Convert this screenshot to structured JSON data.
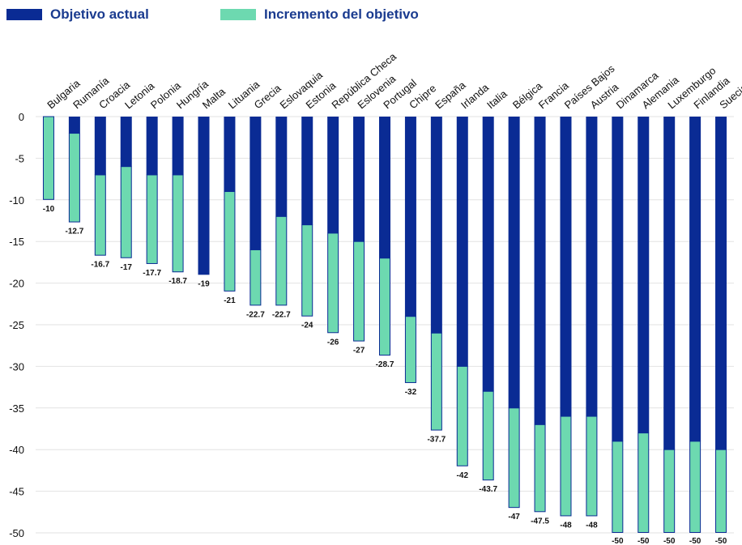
{
  "colors": {
    "current": "#0a2b94",
    "increase": "#6dd9b0",
    "legend_text": "#1a3b8f",
    "grid": "#e2e2e2",
    "axis_text": "#111111"
  },
  "legend": {
    "current_label": "Objetivo actual",
    "increase_label": "Incremento del objetivo"
  },
  "chart_data": {
    "type": "bar",
    "stacked": true,
    "legend_position": "top-left",
    "grid": true,
    "ylim": [
      -50,
      0
    ],
    "yticks": [
      "0",
      "-5",
      "-10",
      "-15",
      "-20",
      "-25",
      "-30",
      "-35",
      "-40",
      "-45",
      "-50"
    ],
    "categories": [
      "Bulgaria",
      "Rumanía",
      "Croacia",
      "Letonia",
      "Polonia",
      "Hungría",
      "Malta",
      "Lituania",
      "Grecia",
      "Eslovaquia",
      "Estonia",
      "República Checa",
      "Eslovenia",
      "Portugal",
      "Chipre",
      "España",
      "Irlanda",
      "Italia",
      "Bélgica",
      "Francia",
      "Países Bajos",
      "Austria",
      "Dinamarca",
      "Alemania",
      "Luxemburgo",
      "Finlandia",
      "Suecia"
    ],
    "series": [
      {
        "name": "Objetivo actual",
        "values": [
          0,
          -2,
          -7,
          -6,
          -7,
          -7,
          -19,
          -9,
          -16,
          -12,
          -13,
          -14,
          -15,
          -17,
          -24,
          -26,
          -30,
          -33,
          -35,
          -37,
          -36,
          -36,
          -39,
          -38,
          -40,
          -39,
          -40
        ]
      },
      {
        "name": "Incremento del objetivo",
        "values": [
          -10,
          -10.7,
          -9.7,
          -11,
          -10.7,
          -11.7,
          0,
          -12,
          -6.7,
          -10.7,
          -11,
          -12,
          -12,
          -11.7,
          -8,
          -11.7,
          -12,
          -10.7,
          -12,
          -10.5,
          -12,
          -12,
          -11,
          -12,
          -10,
          -11,
          -10
        ]
      }
    ],
    "totals": [
      -10,
      -12.7,
      -16.7,
      -17,
      -17.7,
      -18.7,
      -19,
      -21,
      -22.7,
      -22.7,
      -24,
      -26,
      -27,
      -28.7,
      -32,
      -37.7,
      -42,
      -43.7,
      -47,
      -47.5,
      -48,
      -48,
      -50,
      -50,
      -50,
      -50,
      -50
    ],
    "total_labels": [
      "-10",
      "-12.7",
      "-16.7",
      "-17",
      "-17.7",
      "-18.7",
      "-19",
      "-21",
      "-22.7",
      "-22.7",
      "-24",
      "-26",
      "-27",
      "-28.7",
      "-32",
      "-37.7",
      "-42",
      "-43.7",
      "-47",
      "-47.5",
      "-48",
      "-48",
      "-50",
      "-50",
      "-50",
      "-50",
      "-50"
    ]
  }
}
